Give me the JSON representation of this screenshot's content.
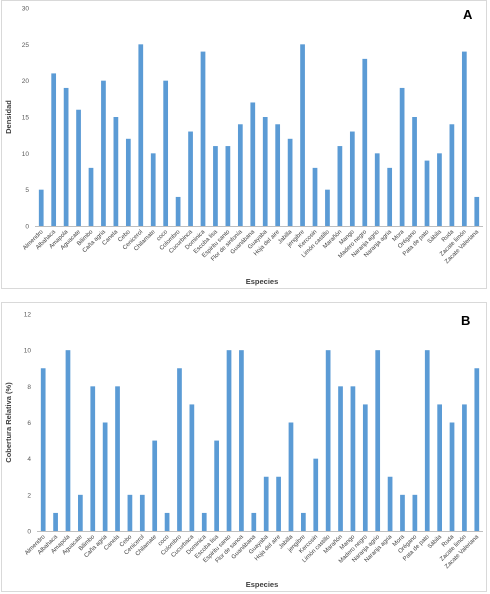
{
  "chart_data": [
    {
      "type": "bar",
      "panel": "A",
      "xlabel": "Especies",
      "ylabel": "Densidad",
      "ylim": [
        0,
        30
      ],
      "yticks": [
        0,
        5,
        10,
        15,
        20,
        25,
        30
      ],
      "grid": false,
      "bar_color": "#5b9bd5",
      "categories": [
        "Almendro",
        "Albahaca",
        "Amapola",
        "Aguacate",
        "Bilimbo",
        "Caña agria",
        "Canela",
        "Cebo",
        "Cenicerol",
        "Chilamate",
        "coco",
        "Colombro",
        "Cucurbinca",
        "Dominica",
        "Escoba lisa",
        "Espiritu santo",
        "Flor de sinfonía",
        "Guanábana",
        "Guayaba",
        "Hoja del aire",
        "Jabilla",
        "jengibre",
        "Kercosin",
        "Limón castillo",
        "Marañón",
        "Mango",
        "Madero negro",
        "Naranja agrio",
        "Naranja agria",
        "Mora",
        "Orégano",
        "Pata de pato",
        "Sábila",
        "Ruda",
        "Zacate limón",
        "Zacate Valeriana"
      ],
      "values": [
        5,
        21,
        19,
        16,
        8,
        20,
        15,
        12,
        25,
        10,
        20,
        4,
        13,
        24,
        11,
        11,
        14,
        17,
        15,
        14,
        12,
        25,
        8,
        5,
        11,
        13,
        23,
        10,
        8,
        19,
        15,
        9,
        10,
        14,
        24,
        4
      ]
    },
    {
      "type": "bar",
      "panel": "B",
      "xlabel": "Especies",
      "ylabel": "Cobertura Relativa (%)",
      "ylim": [
        0,
        12
      ],
      "yticks": [
        0,
        2,
        4,
        6,
        8,
        10,
        12
      ],
      "grid": false,
      "bar_color": "#5b9bd5",
      "categories": [
        "Almendro",
        "Albahaca",
        "Amapola",
        "Aguacate",
        "Bilimbo",
        "Caña agria",
        "Canela",
        "Cebo",
        "Cenicerol",
        "Chilamate",
        "coco",
        "Colombro",
        "Cucurbaca",
        "Dominica",
        "Escoba lisa",
        "Espiritu santo",
        "Flor de sanoa",
        "Guanábana",
        "Guayaba",
        "Hoja del aire",
        "Jabilla",
        "jengibre",
        "Kercosin",
        "Limón castillo",
        "Marañón",
        "Mango",
        "Madero negro",
        "Naranja agrio",
        "Naranja agria",
        "Mora",
        "Orégano",
        "Pata de pato",
        "Sábila",
        "Ruda",
        "Zacate limón",
        "Zacate Valeriana"
      ],
      "values": [
        9,
        1,
        10,
        2,
        8,
        6,
        8,
        2,
        2,
        5,
        1,
        9,
        7,
        1,
        5,
        10,
        10,
        1,
        3,
        3,
        6,
        1,
        4,
        10,
        8,
        8,
        7,
        10,
        3,
        2,
        2,
        10,
        7,
        6,
        7,
        9
      ]
    }
  ]
}
